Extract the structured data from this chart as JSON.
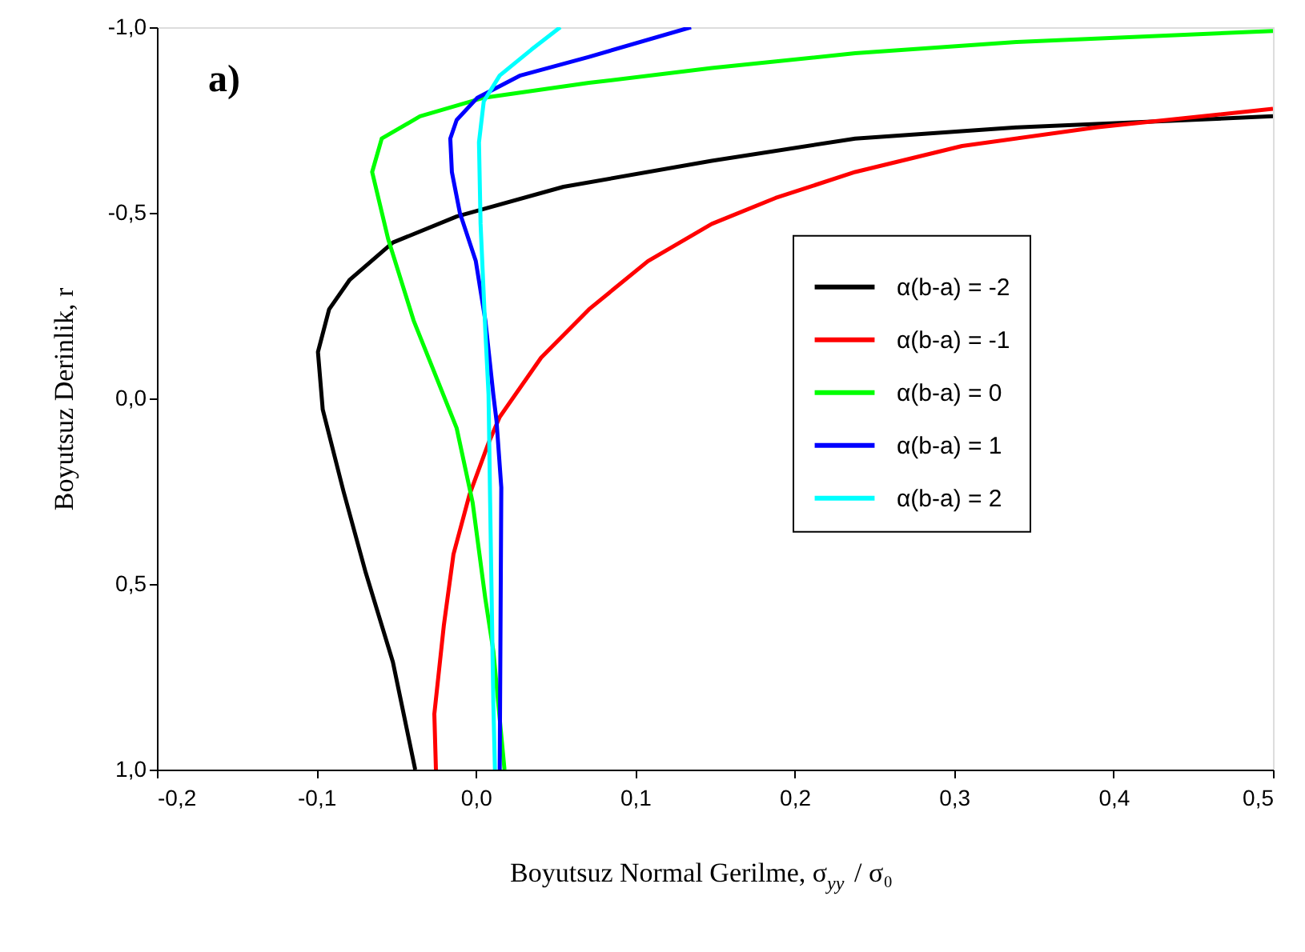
{
  "chart_data": {
    "type": "line",
    "xlabel": "Boyutsuz Normal Gerilme, σ$_{yy}$ / σ₀",
    "ylabel": "Boyutsuz Derinlik, r",
    "annotations": [
      "a)"
    ],
    "xlim": [
      -0.2,
      0.5
    ],
    "xticks": [
      {
        "value": -0.2,
        "label": "-0,2"
      },
      {
        "value": -0.1,
        "label": "-0,1"
      },
      {
        "value": 0,
        "label": "0,0"
      },
      {
        "value": 0.1,
        "label": "0,1"
      },
      {
        "value": 0.2,
        "label": "0,2"
      },
      {
        "value": 0.3,
        "label": "0,3"
      },
      {
        "value": 0.4,
        "label": "0,4"
      },
      {
        "value": 0.5,
        "label": "0,5"
      }
    ],
    "ylim": [
      1.0,
      -1.0
    ],
    "yticks": [
      {
        "value": -1.0,
        "label": "-1,0"
      },
      {
        "value": -0.5,
        "label": "-0,5"
      },
      {
        "value": 0,
        "label": "0,0"
      },
      {
        "value": 0.5,
        "label": "0,5"
      },
      {
        "value": 1.0,
        "label": "1,0"
      }
    ],
    "grid": false,
    "legend": "right",
    "marker": "none",
    "line_style": "solid",
    "series": [
      {
        "name": "α(b-a) = -2",
        "color": "#000000",
        "x": [
          0.5,
          0.339,
          0.238,
          0.148,
          0.055,
          -0.012,
          -0.052,
          -0.079,
          -0.092,
          -0.099,
          -0.096,
          -0.083,
          -0.069,
          -0.052,
          -0.038
        ],
        "values": [
          -0.76,
          -0.73,
          -0.7,
          -0.64,
          -0.57,
          -0.49,
          -0.42,
          -0.32,
          -0.24,
          -0.125,
          0.03,
          0.25,
          0.47,
          0.71,
          1.0
        ]
      },
      {
        "name": "α(b-a) = -1",
        "color": "#ff0000",
        "x": [
          0.5,
          0.389,
          0.305,
          0.238,
          0.188,
          0.148,
          0.108,
          0.071,
          0.041,
          0.015,
          0.008,
          -0.004,
          -0.014,
          -0.02,
          -0.026,
          -0.025
        ],
        "values": [
          -0.78,
          -0.73,
          -0.68,
          -0.61,
          -0.54,
          -0.47,
          -0.37,
          -0.24,
          -0.11,
          0.05,
          0.12,
          0.26,
          0.42,
          0.61,
          0.85,
          1.0
        ]
      },
      {
        "name": "α(b-a) = 0",
        "color": "#00ff00",
        "x": [
          0.5,
          0.339,
          0.238,
          0.148,
          0.071,
          0.005,
          -0.035,
          -0.059,
          -0.065,
          -0.055,
          -0.039,
          -0.012,
          -0.002,
          0.006,
          0.011,
          0.018
        ],
        "values": [
          -0.99,
          -0.96,
          -0.93,
          -0.89,
          -0.85,
          -0.81,
          -0.76,
          -0.7,
          -0.61,
          -0.43,
          -0.21,
          0.08,
          0.28,
          0.54,
          0.68,
          1.0
        ]
      },
      {
        "name": "α(b-a) = 1",
        "color": "#0000ff",
        "x": [
          0.135,
          0.071,
          0.028,
          0.001,
          -0.012,
          -0.016,
          -0.015,
          -0.01,
          0.0,
          0.006,
          0.011,
          0.013,
          0.016,
          0.015
        ],
        "values": [
          -1.0,
          -0.92,
          -0.87,
          -0.81,
          -0.75,
          -0.7,
          -0.61,
          -0.5,
          -0.37,
          -0.21,
          -0.01,
          0.06,
          0.24,
          1.0
        ]
      },
      {
        "name": "α(b-a) = 2",
        "color": "#00ffff",
        "x": [
          0.053,
          0.035,
          0.015,
          0.005,
          0.002,
          0.003,
          0.006,
          0.008,
          0.009,
          0.011,
          0.012
        ],
        "values": [
          -1.0,
          -0.94,
          -0.87,
          -0.8,
          -0.69,
          -0.47,
          -0.18,
          -0.01,
          0.28,
          0.82,
          1.0
        ]
      }
    ]
  }
}
